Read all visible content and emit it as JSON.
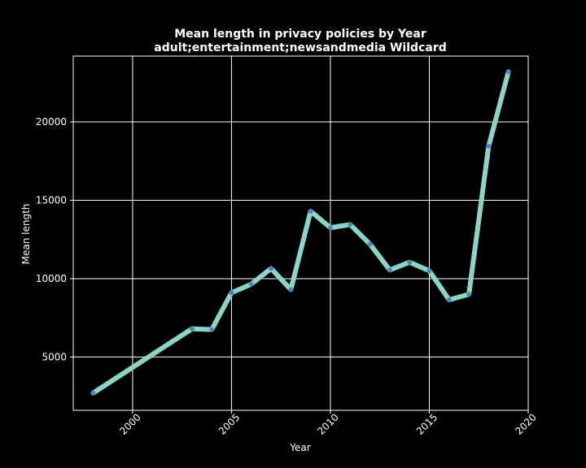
{
  "chart_data": {
    "type": "line",
    "title": "Mean length in privacy policies by Year",
    "subtitle": "adult;entertainment;newsandmedia Wildcard",
    "xlabel": "Year",
    "ylabel": "Mean length",
    "xlim": [
      1997,
      2020
    ],
    "ylim": [
      1600,
      24200
    ],
    "x_ticks": [
      2000,
      2005,
      2010,
      2015,
      2020
    ],
    "y_ticks": [
      5000,
      10000,
      15000,
      20000
    ],
    "grid": true,
    "background": "#000000",
    "foreground": "#ffffff",
    "line_color": "#8dd3c7",
    "marker_color": "#4c72b0",
    "series": [
      {
        "x": [
          1998,
          2003,
          2004,
          2005,
          2006,
          2007,
          2008,
          2009,
          2010,
          2011,
          2012,
          2013,
          2014,
          2015,
          2016,
          2017,
          2018,
          2019
        ],
        "values": [
          2700,
          6800,
          6750,
          9100,
          9650,
          10650,
          9300,
          14300,
          13250,
          13450,
          12200,
          10550,
          11050,
          10500,
          8650,
          9000,
          18450,
          23200
        ]
      }
    ]
  }
}
